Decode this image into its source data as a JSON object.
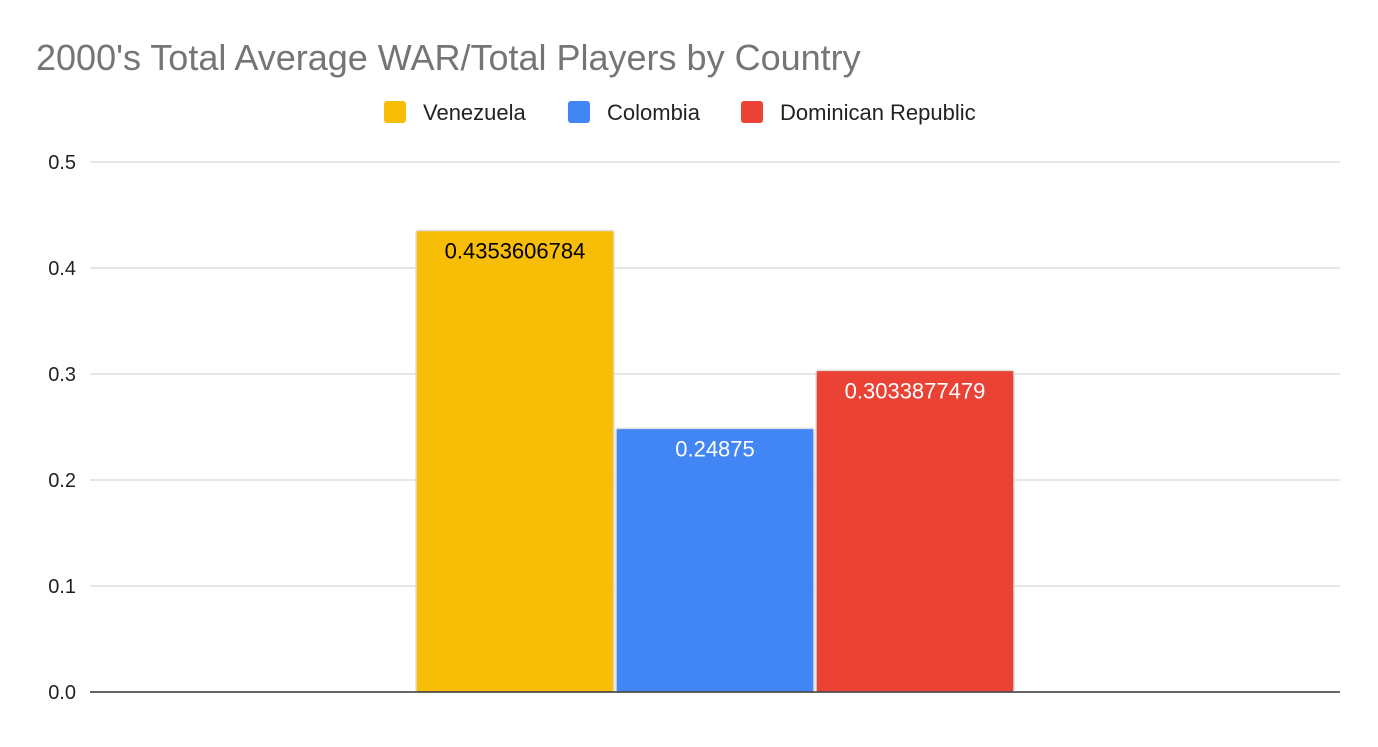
{
  "chart_data": {
    "type": "bar",
    "title": "2000's Total Average WAR/Total Players by Country",
    "xlabel": "",
    "ylabel": "",
    "ylim": [
      0,
      0.5
    ],
    "y_ticks": [
      0.0,
      0.1,
      0.2,
      0.3,
      0.4,
      0.5
    ],
    "y_tick_labels": [
      "0.0",
      "0.1",
      "0.2",
      "0.3",
      "0.4",
      "0.5"
    ],
    "grid": true,
    "legend_position": "top-center",
    "categories": [
      ""
    ],
    "series": [
      {
        "name": "Venezuela",
        "color": "#f8bd06",
        "label_color": "#000000",
        "values": [
          0.4353606784
        ],
        "data_labels": [
          "0.4353606784"
        ]
      },
      {
        "name": "Colombia",
        "color": "#4285f4",
        "label_color": "#ffffff",
        "values": [
          0.24875
        ],
        "data_labels": [
          "0.24875"
        ]
      },
      {
        "name": "Dominican Republic",
        "color": "#ea4335",
        "label_color": "#ffffff",
        "values": [
          0.3033877479
        ],
        "data_labels": [
          "0.3033877479"
        ]
      }
    ]
  }
}
